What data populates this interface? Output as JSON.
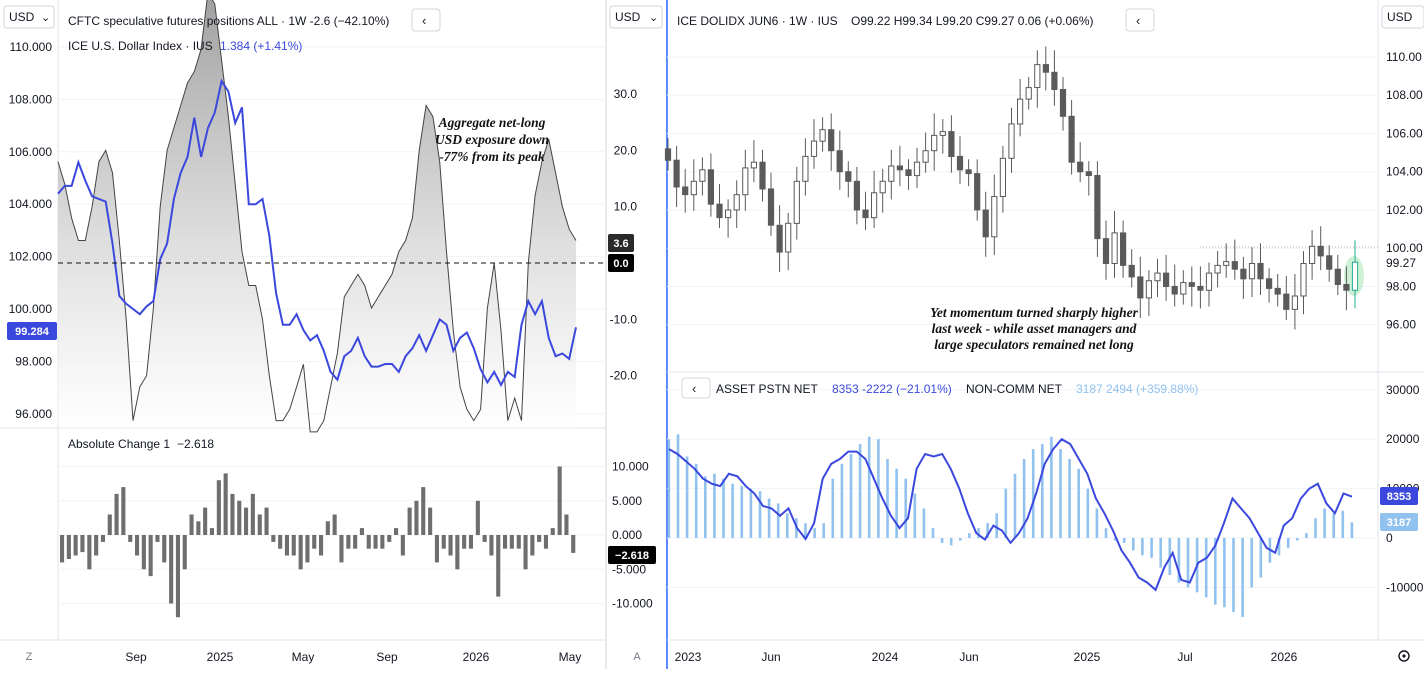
{
  "left_chart": {
    "currency_label": "USD",
    "legend_title": "CFTC speculative futures positions ALL · 1W  -2.6 (−42.10%)",
    "legend_series2_name": "ICE U.S. Dollar Index · IUS",
    "legend_series2_value": "1.384 (+1.41%)",
    "collapse_icon": "chevron-left-icon",
    "annotation": [
      "Aggregate net-long",
      "USD exposure down",
      "-77% from its peak"
    ],
    "price_badge": "99.284",
    "cftc_badge": "3.6",
    "zero_badge": "0.0",
    "left_axis_ticks": [
      "110.000",
      "108.000",
      "106.000",
      "104.000",
      "102.000",
      "100.000",
      "98.000",
      "96.000"
    ],
    "right_axis_ticks": [
      "30.0",
      "20.0",
      "10.0",
      "0.0",
      "-10.0",
      "-20.0"
    ],
    "subpane_title": "Absolute Change 1",
    "subpane_value": "−2.618",
    "subpane_badge": "−2.618",
    "subpane_ticks": [
      "10.000",
      "5.000",
      "0.000",
      "-5.000",
      "-10.000"
    ],
    "x_labels": [
      "Sep",
      "2025",
      "May",
      "Sep",
      "2026",
      "May"
    ],
    "corner_left": "Z",
    "corner_right": "A"
  },
  "right_chart": {
    "currency_label": "USD",
    "legend_title": "ICE DOLIDX JUN6 · 1W · IUS",
    "ohlc": "O99.22  H99.34  L99.20  C99.27  0.06 (+0.06%)",
    "collapse_icon": "chevron-left-icon",
    "annotation": [
      "Yet momentum turned sharply higher",
      "last week - while asset managers and",
      "large speculators remained net long"
    ],
    "price_label": "99.27",
    "axis_ticks": [
      "110.00",
      "108.00",
      "106.00",
      "104.00",
      "102.00",
      "100.00",
      "98.00",
      "96.00"
    ],
    "lower_legend": {
      "series1_name": "ASSET PSTN NET",
      "series1_values": "8353  -2222 (−21.01%)",
      "series2_name": "NON-COMM NET",
      "series2_values": "3187  2494 (+359.88%)"
    },
    "lower_ticks": [
      "30000",
      "20000",
      "10000",
      "0",
      "-10000"
    ],
    "badge_asset": "8353",
    "badge_noncomm": "3187",
    "x_labels": [
      "2023",
      "Jun",
      "2024",
      "Jun",
      "2025",
      "Jul",
      "2026"
    ],
    "settings_icon": "gear-icon"
  },
  "colors": {
    "dxy_line": "#3b48dd",
    "cftc_fill": "#b5b5b5",
    "bars": "#6e6e6e",
    "asset_line": "#3b48dd",
    "noncomm_bars": "#90c1ef"
  },
  "chart_data": [
    {
      "type": "area",
      "title": "CFTC speculative futures positions ALL",
      "series": [
        {
          "name": "CFTC speculative futures positions ALL",
          "values": [
            18,
            14,
            8,
            4,
            4,
            10,
            18,
            20,
            16,
            4,
            -10,
            -28,
            -22,
            -20,
            -8,
            10,
            20,
            24,
            28,
            32,
            34,
            38,
            48,
            46,
            36,
            26,
            14,
            2,
            -4,
            -4,
            -10,
            -20,
            -28,
            -28,
            -26,
            -22,
            -18,
            -30,
            -30,
            -28,
            -22,
            -16,
            -6,
            -4,
            -2,
            -4,
            -8,
            -6,
            -4,
            -2,
            2,
            4,
            8,
            20,
            28,
            26,
            18,
            2,
            -12,
            -22,
            -26,
            -28,
            -26,
            -8,
            0,
            -12,
            -28,
            -24,
            -28,
            0,
            12,
            18,
            22,
            16,
            10,
            6,
            4
          ],
          "ylim": [
            -28,
            38
          ]
        },
        {
          "name": "ICE U.S. Dollar Index",
          "values": [
            104.4,
            104.7,
            104.7,
            105.6,
            104.9,
            104.3,
            104.2,
            104.1,
            102.5,
            100.5,
            100.2,
            100,
            99.8,
            100.1,
            100.3,
            101.9,
            102.5,
            104.2,
            105.2,
            105.8,
            107.3,
            105.8,
            106.9,
            107.5,
            108.7,
            108.3,
            107.1,
            107.7,
            104,
            104,
            104.2,
            102.8,
            100.6,
            99.4,
            99.4,
            99.8,
            99.2,
            98.8,
            99,
            98.4,
            97.6,
            97.3,
            98.2,
            98.4,
            98.9,
            98.2,
            97.8,
            97.8,
            97.9,
            97.9,
            97.6,
            98.2,
            98.5,
            99,
            98.4,
            99,
            99.6,
            99.4,
            98.4,
            98.9,
            99.1,
            98.5,
            97.7,
            97.2,
            97.6,
            97.1,
            97.6,
            97.4,
            99.4,
            100.3,
            99.8,
            100.3,
            98.9,
            98.2,
            98.3,
            98.1,
            99.3
          ]
        }
      ],
      "ylim": [
        95.6,
        110.6
      ],
      "annotations": [
        "Aggregate net-long USD exposure down -77% from its peak"
      ]
    },
    {
      "type": "bar",
      "title": "Absolute Change 1",
      "values": [
        -4,
        -3.5,
        -3,
        -2.5,
        -5,
        -3,
        -1,
        3,
        6,
        7,
        -1,
        -3,
        -5,
        -6,
        -1,
        -4,
        -10,
        -12,
        -5,
        3,
        2,
        4,
        1,
        8,
        9,
        6,
        5,
        4,
        6,
        3,
        4,
        -1,
        -2,
        -3,
        -3,
        -5,
        -4,
        -2,
        -3,
        2,
        3,
        -4,
        -2,
        -2,
        1,
        -2,
        -2,
        -2,
        -1,
        1,
        -3,
        4,
        5,
        7,
        4,
        -4,
        -2,
        -3,
        -5,
        -2,
        -2,
        5,
        -1,
        -3,
        -9,
        -2,
        -2,
        -2,
        -5,
        -3,
        -1,
        -2,
        1,
        10,
        3,
        -2.618
      ],
      "ylim": [
        -14,
        13
      ]
    },
    {
      "type": "line",
      "title": "ICE DOLIDX JUN6 · 1W",
      "series": [
        {
          "name": "ICE DOLIDX JUN6",
          "values": [
            104.6,
            103.2,
            102.8,
            103.5,
            104.1,
            102.3,
            101.6,
            102.0,
            102.8,
            104.2,
            104.5,
            103.1,
            101.2,
            99.8,
            101.3,
            103.5,
            104.8,
            105.6,
            106.2,
            105.1,
            104.0,
            103.5,
            102.0,
            101.6,
            102.9,
            103.5,
            104.3,
            104.1,
            103.8,
            104.5,
            105.1,
            105.9,
            106.1,
            104.8,
            104.1,
            103.9,
            102.0,
            100.6,
            102.7,
            104.7,
            106.5,
            107.8,
            108.4,
            109.6,
            109.2,
            108.3,
            106.9,
            104.5,
            104.0,
            103.8,
            100.5,
            99.2,
            100.8,
            99.1,
            98.5,
            97.4,
            98.3,
            98.7,
            98.0,
            97.6,
            98.2,
            98.0,
            97.8,
            98.7,
            99.1,
            99.3,
            98.9,
            98.4,
            99.2,
            98.4,
            97.9,
            97.6,
            96.8,
            97.5,
            99.2,
            100.1,
            99.6,
            98.9,
            98.1,
            97.8,
            99.27
          ]
        }
      ],
      "ylim": [
        94.6,
        110.7
      ]
    },
    {
      "type": "bar",
      "title": "Positioning",
      "series": [
        {
          "name": "ASSET PSTN NET",
          "values": [
            18000,
            17000,
            15500,
            14000,
            12000,
            11000,
            10500,
            13000,
            12500,
            10500,
            9000,
            6500,
            6000,
            4500,
            6000,
            2000,
            -200,
            3000,
            12000,
            15000,
            16000,
            17500,
            17500,
            16000,
            12000,
            8000,
            4500,
            2000,
            4000,
            14000,
            17000,
            16500,
            17000,
            14000,
            10000,
            5000,
            1000,
            -300,
            2500,
            1500,
            -1000,
            1000,
            4000,
            9000,
            15000,
            18000,
            20000,
            19000,
            16000,
            13000,
            8000,
            5000,
            1500,
            -2500,
            -5000,
            -8000,
            -9000,
            -10500,
            -6000,
            -3000,
            -8500,
            -9000,
            -5000,
            -4000,
            -1500,
            3000,
            8000,
            6000,
            4000,
            1000,
            -2000,
            -3000,
            2500,
            4000,
            8000,
            10000,
            11000,
            7000,
            5000,
            9000,
            8353
          ]
        },
        {
          "name": "NON-COMM NET",
          "values": [
            20000,
            21000,
            16500,
            15000,
            12500,
            13000,
            12000,
            11000,
            10500,
            10000,
            9500,
            8000,
            7000,
            5000,
            4000,
            3000,
            2000,
            3000,
            12000,
            15000,
            17000,
            19000,
            20500,
            20000,
            16000,
            14000,
            12000,
            9000,
            6000,
            2000,
            -1000,
            -1500,
            -500,
            1000,
            2000,
            3000,
            5000,
            10000,
            13000,
            16000,
            18000,
            19000,
            20500,
            18000,
            16000,
            14000,
            10000,
            6000,
            2000,
            -500,
            -1000,
            -2500,
            -3500,
            -4000,
            -6000,
            -7500,
            -9000,
            -10000,
            -11000,
            -12000,
            -13500,
            -14000,
            -15000,
            -16000,
            -10000,
            -8000,
            -5000,
            -3500,
            -2000,
            -500,
            1000,
            4000,
            6000,
            5000,
            5500,
            3187
          ],
          "ylim": [
            -20000,
            33000
          ]
        }
      ],
      "ylim": [
        -20000,
        33000
      ]
    }
  ]
}
